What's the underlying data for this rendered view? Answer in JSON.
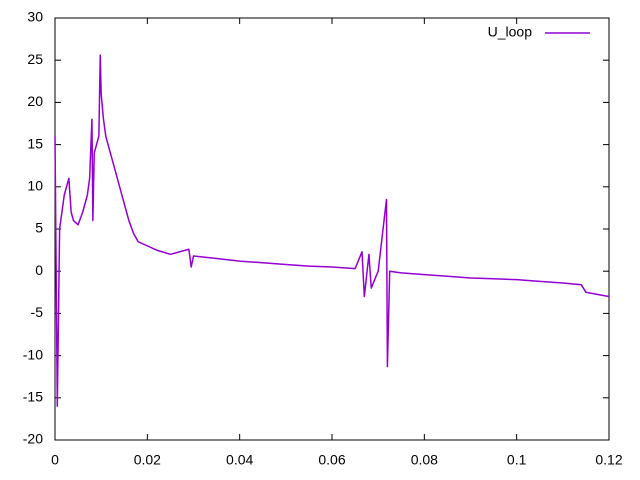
{
  "chart_data": {
    "type": "line",
    "x": [
      0,
      0.0005,
      0.001,
      0.002,
      0.003,
      0.0035,
      0.004,
      0.005,
      0.006,
      0.007,
      0.0075,
      0.008,
      0.0082,
      0.0085,
      0.009,
      0.0095,
      0.0098,
      0.01,
      0.0105,
      0.011,
      0.012,
      0.013,
      0.014,
      0.015,
      0.016,
      0.017,
      0.018,
      0.02,
      0.022,
      0.025,
      0.029,
      0.0295,
      0.03,
      0.035,
      0.04,
      0.045,
      0.05,
      0.055,
      0.06,
      0.065,
      0.0665,
      0.067,
      0.068,
      0.0685,
      0.07,
      0.0718,
      0.072,
      0.0725,
      0.075,
      0.08,
      0.085,
      0.09,
      0.095,
      0.1,
      0.105,
      0.11,
      0.114,
      0.115,
      0.118,
      0.12
    ],
    "series": [
      {
        "name": "U_loop",
        "color": "#9400d3",
        "values": [
          16,
          -16,
          5,
          9,
          11,
          7,
          6,
          5.5,
          7,
          9,
          11,
          18,
          6,
          14,
          15,
          16,
          25.6,
          21,
          18,
          16,
          14,
          12,
          10,
          8,
          6,
          4.5,
          3.5,
          3,
          2.5,
          2,
          2.6,
          0.5,
          1.8,
          1.5,
          1.2,
          1,
          0.8,
          0.6,
          0.5,
          0.3,
          2.3,
          -3,
          2,
          -2,
          0,
          8.5,
          -11.3,
          0,
          -0.2,
          -0.4,
          -0.6,
          -0.8,
          -0.9,
          -1,
          -1.2,
          -1.4,
          -1.6,
          -2.5,
          -2.8,
          -3
        ]
      }
    ],
    "xlim": [
      0,
      0.12
    ],
    "xticks": [
      0,
      0.02,
      0.04,
      0.06,
      0.08,
      0.1,
      0.12
    ],
    "ylim": [
      -20,
      30
    ],
    "yticks": [
      -20,
      -15,
      -10,
      -5,
      0,
      5,
      10,
      15,
      20,
      25,
      30
    ],
    "legend": "top-right"
  }
}
